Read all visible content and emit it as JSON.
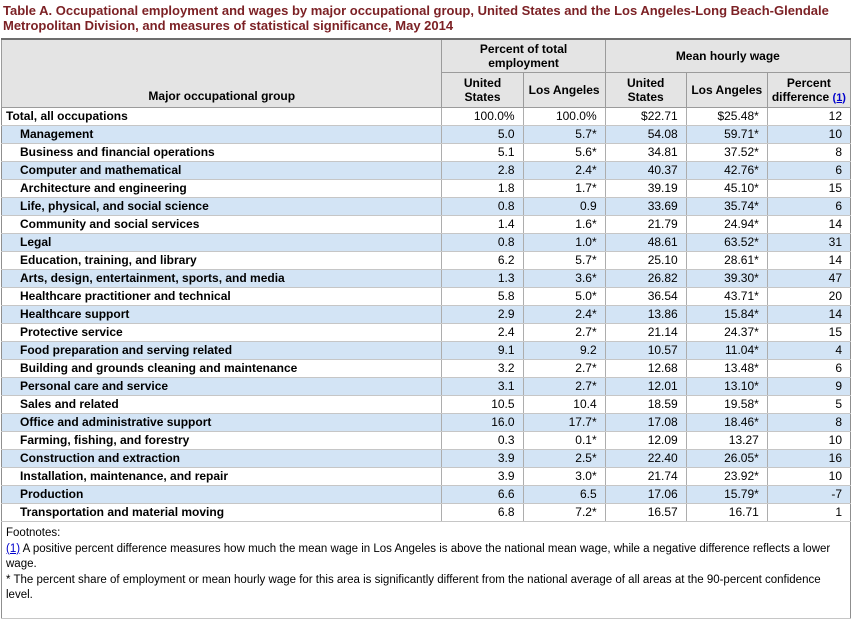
{
  "title": "Table A. Occupational employment and wages by major occupational group, United States and the Los Angeles-Long Beach-Glendale Metropolitan Division, and measures of statistical significance, May 2014",
  "table": {
    "row_header": "Major occupational group",
    "groups": [
      {
        "label": "Percent of total\nemployment"
      },
      {
        "label": "Mean hourly wage"
      }
    ],
    "columns": [
      "United\nStates",
      "Los Angeles",
      "United\nStates",
      "Los Angeles",
      "Percent\ndifference"
    ],
    "footnote_ref": "(1)",
    "rows": [
      {
        "label": "Total, all occupations",
        "indent": false,
        "values": [
          "100.0%",
          "100.0%",
          "$22.71",
          "$25.48*",
          "12"
        ]
      },
      {
        "label": "Management",
        "indent": true,
        "values": [
          "5.0",
          "5.7*",
          "54.08",
          "59.71*",
          "10"
        ]
      },
      {
        "label": "Business and financial operations",
        "indent": true,
        "values": [
          "5.1",
          "5.6*",
          "34.81",
          "37.52*",
          "8"
        ]
      },
      {
        "label": "Computer and mathematical",
        "indent": true,
        "values": [
          "2.8",
          "2.4*",
          "40.37",
          "42.76*",
          "6"
        ]
      },
      {
        "label": "Architecture and engineering",
        "indent": true,
        "values": [
          "1.8",
          "1.7*",
          "39.19",
          "45.10*",
          "15"
        ]
      },
      {
        "label": "Life, physical, and social science",
        "indent": true,
        "values": [
          "0.8",
          "0.9",
          "33.69",
          "35.74*",
          "6"
        ]
      },
      {
        "label": "Community and social services",
        "indent": true,
        "values": [
          "1.4",
          "1.6*",
          "21.79",
          "24.94*",
          "14"
        ]
      },
      {
        "label": "Legal",
        "indent": true,
        "values": [
          "0.8",
          "1.0*",
          "48.61",
          "63.52*",
          "31"
        ]
      },
      {
        "label": "Education, training, and library",
        "indent": true,
        "values": [
          "6.2",
          "5.7*",
          "25.10",
          "28.61*",
          "14"
        ]
      },
      {
        "label": "Arts, design, entertainment, sports, and media",
        "indent": true,
        "values": [
          "1.3",
          "3.6*",
          "26.82",
          "39.30*",
          "47"
        ]
      },
      {
        "label": "Healthcare practitioner and technical",
        "indent": true,
        "values": [
          "5.8",
          "5.0*",
          "36.54",
          "43.71*",
          "20"
        ]
      },
      {
        "label": "Healthcare support",
        "indent": true,
        "values": [
          "2.9",
          "2.4*",
          "13.86",
          "15.84*",
          "14"
        ]
      },
      {
        "label": "Protective service",
        "indent": true,
        "values": [
          "2.4",
          "2.7*",
          "21.14",
          "24.37*",
          "15"
        ]
      },
      {
        "label": "Food preparation and serving related",
        "indent": true,
        "values": [
          "9.1",
          "9.2",
          "10.57",
          "11.04*",
          "4"
        ]
      },
      {
        "label": "Building and grounds cleaning and maintenance",
        "indent": true,
        "values": [
          "3.2",
          "2.7*",
          "12.68",
          "13.48*",
          "6"
        ]
      },
      {
        "label": "Personal care and service",
        "indent": true,
        "values": [
          "3.1",
          "2.7*",
          "12.01",
          "13.10*",
          "9"
        ]
      },
      {
        "label": "Sales and related",
        "indent": true,
        "values": [
          "10.5",
          "10.4",
          "18.59",
          "19.58*",
          "5"
        ]
      },
      {
        "label": "Office and administrative support",
        "indent": true,
        "values": [
          "16.0",
          "17.7*",
          "17.08",
          "18.46*",
          "8"
        ]
      },
      {
        "label": "Farming, fishing, and forestry",
        "indent": true,
        "values": [
          "0.3",
          "0.1*",
          "12.09",
          "13.27",
          "10"
        ]
      },
      {
        "label": "Construction and extraction",
        "indent": true,
        "values": [
          "3.9",
          "2.5*",
          "22.40",
          "26.05*",
          "16"
        ]
      },
      {
        "label": "Installation, maintenance, and repair",
        "indent": true,
        "values": [
          "3.9",
          "3.0*",
          "21.74",
          "23.92*",
          "10"
        ]
      },
      {
        "label": "Production",
        "indent": true,
        "values": [
          "6.6",
          "6.5",
          "17.06",
          "15.79*",
          "-7"
        ]
      },
      {
        "label": "Transportation and material moving",
        "indent": true,
        "values": [
          "6.8",
          "7.2*",
          "16.57",
          "16.71",
          "1"
        ]
      }
    ]
  },
  "footnotes": {
    "heading": "Footnotes:",
    "note1_ref": "(1)",
    "note1_text": " A positive percent difference measures how much the mean wage in Los Angeles is above the national mean wage, while a negative difference reflects a lower wage.",
    "note2_text": "* The percent share of employment or mean hourly wage for this area is significantly different from the national average of all areas at the 90-percent confidence level."
  },
  "colors": {
    "title": "#7c2125",
    "row_alt": "#d3e4f5",
    "header_bg": "#e4e4e4",
    "link": "#0000cc"
  }
}
